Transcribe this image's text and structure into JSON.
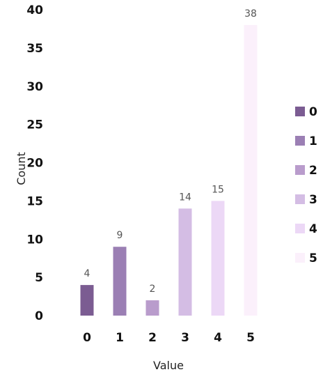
{
  "chart_data": {
    "type": "bar",
    "categories": [
      "0",
      "1",
      "2",
      "3",
      "4",
      "5"
    ],
    "values": [
      4,
      9,
      2,
      14,
      15,
      38
    ],
    "data_labels": [
      "4",
      "9",
      "2",
      "14",
      "15",
      "38"
    ],
    "xlabel": "Value",
    "ylabel": "Count",
    "ylim": [
      0,
      40
    ],
    "yticks": [
      0,
      5,
      10,
      15,
      20,
      25,
      30,
      35,
      40
    ],
    "grid": false,
    "legend": {
      "placement": "right",
      "entries": [
        "0",
        "1",
        "2",
        "3",
        "4",
        "5"
      ]
    },
    "colors": [
      "#7b5c92",
      "#9b7fb4",
      "#b99ccc",
      "#d4bde4",
      "#ecd8f6",
      "#fbf0fb"
    ]
  }
}
